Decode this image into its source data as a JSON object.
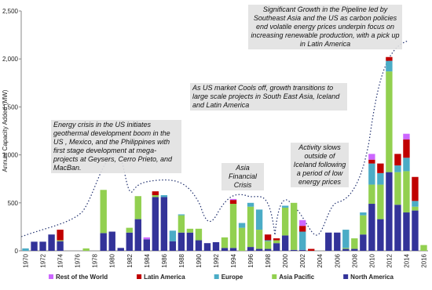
{
  "chart_data": {
    "type": "stacked_bar",
    "y_label": "Annual Capacity Added (MW)",
    "categories": [
      "1970",
      null,
      "1972",
      null,
      "1974",
      null,
      "1976",
      null,
      "1978",
      null,
      "1980",
      null,
      "1982",
      null,
      "1984",
      null,
      "1986",
      null,
      "1988",
      null,
      "1990",
      null,
      "1992",
      null,
      "1994",
      null,
      "1996",
      null,
      "1998",
      null,
      "2000",
      null,
      "2002",
      null,
      "2004",
      null,
      "2006",
      null,
      "2008",
      null,
      "2010",
      null,
      "2012",
      null,
      "2014",
      null,
      "2016"
    ],
    "series": [
      {
        "name": "Rest of the World",
        "color": "#cc66ff",
        "values": [
          0,
          0,
          0,
          0,
          0,
          0,
          0,
          0,
          0,
          0,
          0,
          0,
          0,
          0,
          20,
          0,
          0,
          0,
          0,
          0,
          0,
          0,
          0,
          0,
          10,
          0,
          0,
          0,
          0,
          0,
          0,
          0,
          60,
          0,
          0,
          0,
          0,
          0,
          0,
          0,
          60,
          0,
          0,
          0,
          60,
          0,
          0
        ]
      },
      {
        "name": "Latin America",
        "color": "#c00000",
        "values": [
          0,
          0,
          0,
          0,
          110,
          0,
          0,
          0,
          0,
          0,
          0,
          0,
          0,
          0,
          0,
          40,
          0,
          0,
          0,
          0,
          0,
          0,
          0,
          0,
          40,
          0,
          0,
          0,
          60,
          20,
          0,
          0,
          60,
          20,
          0,
          0,
          0,
          0,
          0,
          0,
          40,
          100,
          40,
          120,
          190,
          250,
          0
        ]
      },
      {
        "name": "Europe",
        "color": "#4bacc6",
        "values": [
          25,
          0,
          0,
          0,
          0,
          0,
          0,
          0,
          0,
          0,
          0,
          0,
          0,
          0,
          0,
          0,
          20,
          110,
          10,
          0,
          0,
          0,
          0,
          0,
          0,
          50,
          40,
          210,
          10,
          0,
          20,
          0,
          190,
          0,
          0,
          0,
          0,
          190,
          0,
          30,
          220,
          120,
          110,
          70,
          140,
          60,
          0
        ]
      },
      {
        "name": "Asia Pacific",
        "color": "#92d050",
        "values": [
          0,
          0,
          0,
          0,
          10,
          0,
          0,
          25,
          0,
          450,
          0,
          0,
          50,
          240,
          0,
          20,
          0,
          0,
          180,
          40,
          120,
          0,
          0,
          110,
          460,
          240,
          420,
          200,
          80,
          30,
          290,
          490,
          0,
          0,
          0,
          0,
          0,
          10,
          110,
          200,
          200,
          360,
          1050,
          340,
          430,
          40,
          60
        ]
      },
      {
        "name": "North America",
        "color": "#333399",
        "values": [
          0,
          95,
          95,
          170,
          100,
          0,
          0,
          0,
          0,
          185,
          200,
          30,
          190,
          330,
          120,
          560,
          560,
          100,
          190,
          190,
          110,
          80,
          90,
          30,
          30,
          0,
          40,
          20,
          20,
          80,
          160,
          10,
          10,
          0,
          0,
          190,
          190,
          20,
          20,
          170,
          490,
          330,
          820,
          480,
          400,
          420,
          0
        ]
      }
    ],
    "ylim": [
      0,
      2500
    ],
    "yticks": [
      0,
      500,
      {
        "value": 1000,
        "label": "1,000"
      },
      {
        "value": 1500,
        "label": "1,500"
      },
      {
        "value": 2000,
        "label": "2,000"
      },
      {
        "value": 2500,
        "label": "2,500"
      }
    ],
    "annotations": [
      "Energy crisis in the US initiates geothermal development boom in the US , Mexico, and the Philippines with first stage development at mega-projects at Geysers, Cerro Prieto, and MacBan.",
      "Asia Financial Crisis",
      "As US market Cools off, growth transitions to large scale projects in South East Asia, Iceland and Latin America",
      "Activity slows outside of Iceland following a period of low energy prices",
      "Significant Growth in the Pipeline led by Southeast Asia and the US as carbon policies end volatile energy prices underpin focus on increasing renewable production, with a pick up in Latin America"
    ]
  }
}
